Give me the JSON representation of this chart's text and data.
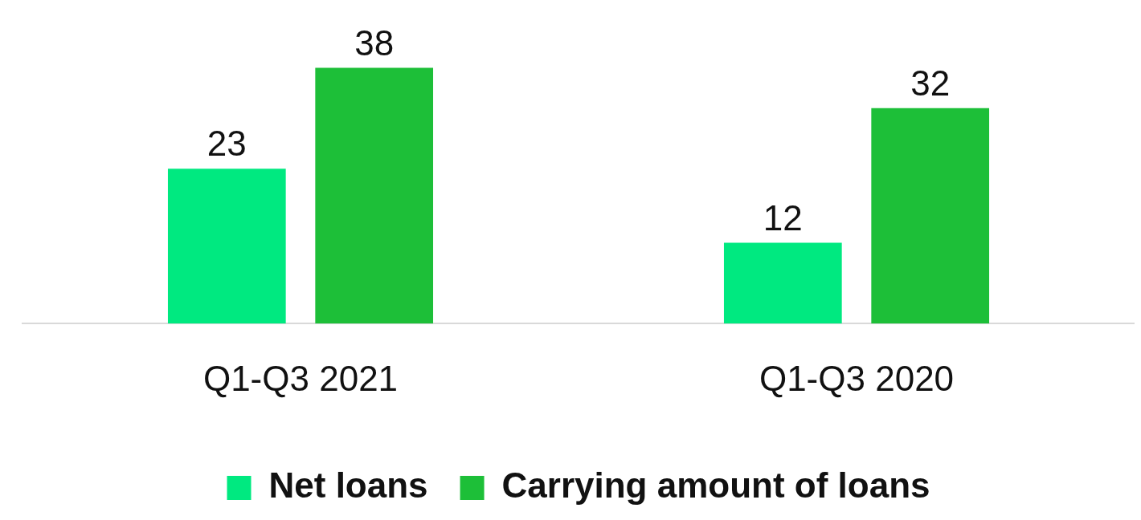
{
  "chart_data": {
    "type": "bar",
    "categories": [
      "Q1-Q3 2021",
      "Q1-Q3 2020"
    ],
    "series": [
      {
        "name": "Net loans",
        "color": "#00e980",
        "values": [
          23,
          12
        ]
      },
      {
        "name": "Carrying amount of loans",
        "color": "#1dbf38",
        "values": [
          38,
          32
        ]
      }
    ],
    "data_labels": true,
    "legend": "bottom",
    "grid": false
  }
}
